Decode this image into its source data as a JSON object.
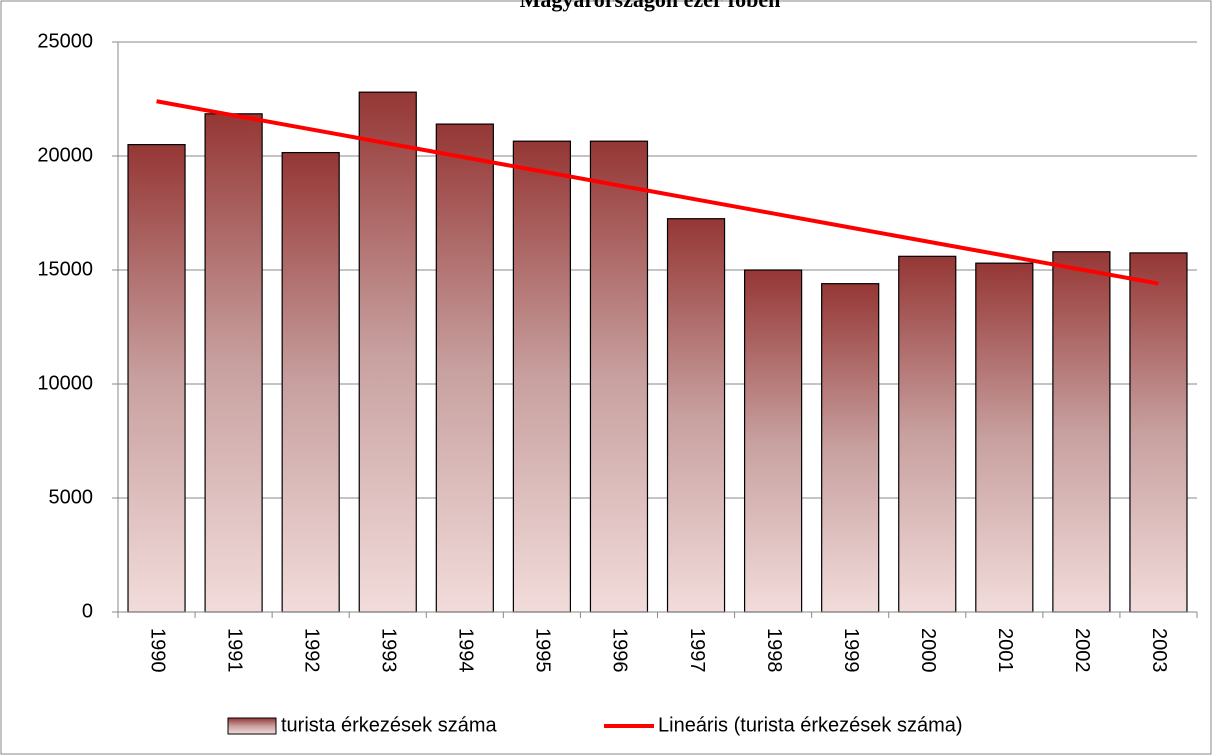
{
  "chart_data": {
    "type": "bar",
    "title": "Magyarországon ezer főben",
    "categories": [
      "1990",
      "1991",
      "1992",
      "1993",
      "1994",
      "1995",
      "1996",
      "1997",
      "1998",
      "1999",
      "2000",
      "2001",
      "2002",
      "2003"
    ],
    "series": [
      {
        "name": "turista érkezések száma",
        "color": "#953735",
        "values": [
          20500,
          21850,
          20150,
          22800,
          21400,
          20650,
          20650,
          17250,
          15000,
          14400,
          15600,
          15300,
          15800,
          15750
        ]
      },
      {
        "name": "Lineáris (turista érkezések száma)",
        "color": "#ff0000",
        "type": "line",
        "values": [
          22400,
          21785,
          21170,
          20555,
          19940,
          19325,
          18710,
          18095,
          17480,
          16865,
          16250,
          15635,
          15020,
          14405
        ]
      }
    ],
    "ylim": [
      0,
      25000
    ],
    "yticks": [
      0,
      5000,
      10000,
      15000,
      20000,
      25000
    ],
    "grid": true,
    "legend": "bottom"
  }
}
